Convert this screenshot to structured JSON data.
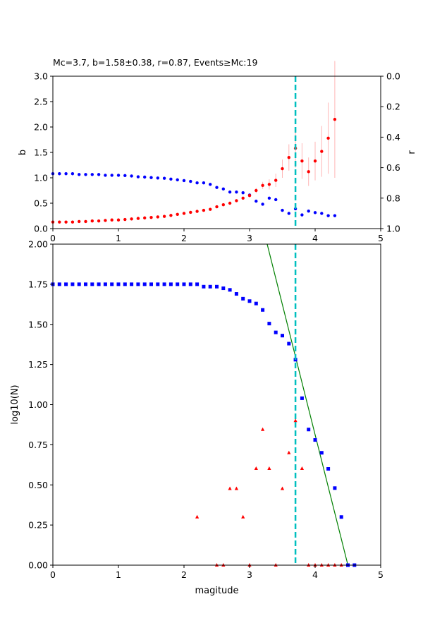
{
  "figure": {
    "title": "Mc=3.7, b=1.58±0.38, r=0.87, Events≥Mc:19"
  },
  "colors": {
    "b_series": "#ff0000",
    "b_error": "#ffb6b6",
    "r_series": "#0000ff",
    "mc_line": "#00bfbf",
    "fit_line": "#008000",
    "cumulative": "#0000ff",
    "incremental": "#ff0000"
  },
  "chart_data": [
    {
      "type": "scatter",
      "ylabel": "b",
      "y2label": "r",
      "xlim": [
        0,
        5
      ],
      "ylim": [
        0,
        3.0
      ],
      "y2lim": [
        1.0,
        0.0
      ],
      "y2_inverted": true,
      "grid": false,
      "xticks": [
        "0",
        "1",
        "2",
        "3",
        "4",
        "5"
      ],
      "yticks": [
        "0.0",
        "0.5",
        "1.0",
        "1.5",
        "2.0",
        "2.5",
        "3.0"
      ],
      "y2ticks": [
        "0.0",
        "0.2",
        "0.4",
        "0.6",
        "0.8",
        "1.0"
      ],
      "mc": 3.7,
      "series": [
        {
          "axis": "left",
          "marker": "dot",
          "points": [
            [
              0.0,
              0.13
            ],
            [
              0.1,
              0.13
            ],
            [
              0.2,
              0.13
            ],
            [
              0.3,
              0.13
            ],
            [
              0.4,
              0.14
            ],
            [
              0.5,
              0.14
            ],
            [
              0.6,
              0.15
            ],
            [
              0.7,
              0.15
            ],
            [
              0.8,
              0.16
            ],
            [
              0.9,
              0.17
            ],
            [
              1.0,
              0.17
            ],
            [
              1.1,
              0.18
            ],
            [
              1.2,
              0.19
            ],
            [
              1.3,
              0.2
            ],
            [
              1.4,
              0.21
            ],
            [
              1.5,
              0.22
            ],
            [
              1.6,
              0.23
            ],
            [
              1.7,
              0.24
            ],
            [
              1.8,
              0.26
            ],
            [
              1.9,
              0.28
            ],
            [
              2.0,
              0.3
            ],
            [
              2.1,
              0.32
            ],
            [
              2.2,
              0.34
            ],
            [
              2.3,
              0.36
            ],
            [
              2.4,
              0.38
            ],
            [
              2.5,
              0.43
            ],
            [
              2.6,
              0.47
            ],
            [
              2.7,
              0.5
            ],
            [
              2.8,
              0.55
            ],
            [
              2.9,
              0.6
            ],
            [
              3.0,
              0.65
            ],
            [
              3.1,
              0.75
            ],
            [
              3.2,
              0.85
            ],
            [
              3.3,
              0.87
            ],
            [
              3.4,
              0.95
            ],
            [
              3.5,
              1.18
            ],
            [
              3.6,
              1.4
            ],
            [
              3.7,
              1.58
            ],
            [
              3.8,
              1.33
            ],
            [
              3.9,
              1.12
            ],
            [
              4.0,
              1.33
            ],
            [
              4.1,
              1.52
            ],
            [
              4.2,
              1.78
            ],
            [
              4.3,
              2.15
            ]
          ],
          "errors": [
            0,
            0,
            0,
            0,
            0,
            0,
            0,
            0,
            0,
            0,
            0,
            0,
            0,
            0,
            0,
            0,
            0,
            0,
            0,
            0,
            0,
            0,
            0,
            0,
            0,
            0,
            0,
            0,
            0,
            0,
            0,
            0.05,
            0.07,
            0.1,
            0.13,
            0.18,
            0.26,
            0.38,
            0.35,
            0.28,
            0.38,
            0.5,
            0.7,
            1.15
          ]
        },
        {
          "axis": "right",
          "marker": "dot",
          "points": [
            [
              0.0,
              0.64
            ],
            [
              0.1,
              0.64
            ],
            [
              0.2,
              0.64
            ],
            [
              0.3,
              0.64
            ],
            [
              0.4,
              0.645
            ],
            [
              0.5,
              0.645
            ],
            [
              0.6,
              0.645
            ],
            [
              0.7,
              0.645
            ],
            [
              0.8,
              0.65
            ],
            [
              0.9,
              0.65
            ],
            [
              1.0,
              0.65
            ],
            [
              1.1,
              0.652
            ],
            [
              1.2,
              0.655
            ],
            [
              1.3,
              0.66
            ],
            [
              1.4,
              0.662
            ],
            [
              1.5,
              0.665
            ],
            [
              1.6,
              0.668
            ],
            [
              1.7,
              0.67
            ],
            [
              1.8,
              0.675
            ],
            [
              1.9,
              0.68
            ],
            [
              2.0,
              0.685
            ],
            [
              2.1,
              0.69
            ],
            [
              2.2,
              0.7
            ],
            [
              2.3,
              0.7
            ],
            [
              2.4,
              0.71
            ],
            [
              2.5,
              0.73
            ],
            [
              2.6,
              0.74
            ],
            [
              2.7,
              0.76
            ],
            [
              2.8,
              0.76
            ],
            [
              2.9,
              0.765
            ],
            [
              3.0,
              0.78
            ],
            [
              3.1,
              0.82
            ],
            [
              3.2,
              0.84
            ],
            [
              3.3,
              0.8
            ],
            [
              3.4,
              0.81
            ],
            [
              3.5,
              0.88
            ],
            [
              3.6,
              0.9
            ],
            [
              3.7,
              0.87
            ],
            [
              3.8,
              0.91
            ],
            [
              3.9,
              0.885
            ],
            [
              4.0,
              0.895
            ],
            [
              4.1,
              0.9
            ],
            [
              4.2,
              0.915
            ],
            [
              4.3,
              0.915
            ]
          ]
        }
      ]
    },
    {
      "type": "scatter",
      "xlabel": "magitude",
      "ylabel": "log10(N)",
      "xlim": [
        0,
        5
      ],
      "ylim": [
        0,
        2.0
      ],
      "grid": false,
      "xticks": [
        "0",
        "1",
        "2",
        "3",
        "4",
        "5"
      ],
      "yticks": [
        "0.00",
        "0.25",
        "0.50",
        "0.75",
        "1.00",
        "1.25",
        "1.50",
        "1.75",
        "2.00"
      ],
      "mc": 3.7,
      "fit_line": {
        "x": [
          3.25,
          4.5
        ],
        "y": [
          2.03,
          0.0
        ]
      },
      "series": [
        {
          "marker": "square",
          "points": [
            [
              0.0,
              1.75
            ],
            [
              0.1,
              1.75
            ],
            [
              0.2,
              1.75
            ],
            [
              0.3,
              1.75
            ],
            [
              0.4,
              1.75
            ],
            [
              0.5,
              1.75
            ],
            [
              0.6,
              1.75
            ],
            [
              0.7,
              1.75
            ],
            [
              0.8,
              1.75
            ],
            [
              0.9,
              1.75
            ],
            [
              1.0,
              1.75
            ],
            [
              1.1,
              1.75
            ],
            [
              1.2,
              1.75
            ],
            [
              1.3,
              1.75
            ],
            [
              1.4,
              1.75
            ],
            [
              1.5,
              1.75
            ],
            [
              1.6,
              1.75
            ],
            [
              1.7,
              1.75
            ],
            [
              1.8,
              1.75
            ],
            [
              1.9,
              1.75
            ],
            [
              2.0,
              1.75
            ],
            [
              2.1,
              1.75
            ],
            [
              2.2,
              1.75
            ],
            [
              2.3,
              1.735
            ],
            [
              2.4,
              1.735
            ],
            [
              2.5,
              1.735
            ],
            [
              2.6,
              1.725
            ],
            [
              2.7,
              1.715
            ],
            [
              2.8,
              1.69
            ],
            [
              2.9,
              1.66
            ],
            [
              3.0,
              1.645
            ],
            [
              3.1,
              1.63
            ],
            [
              3.2,
              1.59
            ],
            [
              3.3,
              1.505
            ],
            [
              3.4,
              1.45
            ],
            [
              3.5,
              1.43
            ],
            [
              3.6,
              1.38
            ],
            [
              3.7,
              1.28
            ],
            [
              3.8,
              1.04
            ],
            [
              3.9,
              0.845
            ],
            [
              4.0,
              0.78
            ],
            [
              4.1,
              0.7
            ],
            [
              4.2,
              0.6
            ],
            [
              4.3,
              0.48
            ],
            [
              4.4,
              0.3
            ],
            [
              4.5,
              0.0
            ],
            [
              4.6,
              0.0
            ]
          ]
        },
        {
          "marker": "triangle",
          "points": [
            [
              2.2,
              0.3
            ],
            [
              2.5,
              0.0
            ],
            [
              2.6,
              0.0
            ],
            [
              2.7,
              0.477
            ],
            [
              2.8,
              0.477
            ],
            [
              2.9,
              0.3
            ],
            [
              3.0,
              0.0
            ],
            [
              3.1,
              0.602
            ],
            [
              3.2,
              0.845
            ],
            [
              3.3,
              0.602
            ],
            [
              3.4,
              0.0
            ],
            [
              3.5,
              0.477
            ],
            [
              3.6,
              0.7
            ],
            [
              3.7,
              0.9
            ],
            [
              3.8,
              0.602
            ],
            [
              3.9,
              0.0
            ],
            [
              4.0,
              0.0
            ],
            [
              4.1,
              0.0
            ],
            [
              4.2,
              0.0
            ],
            [
              4.3,
              0.0
            ],
            [
              4.4,
              0.0
            ]
          ]
        }
      ]
    }
  ]
}
